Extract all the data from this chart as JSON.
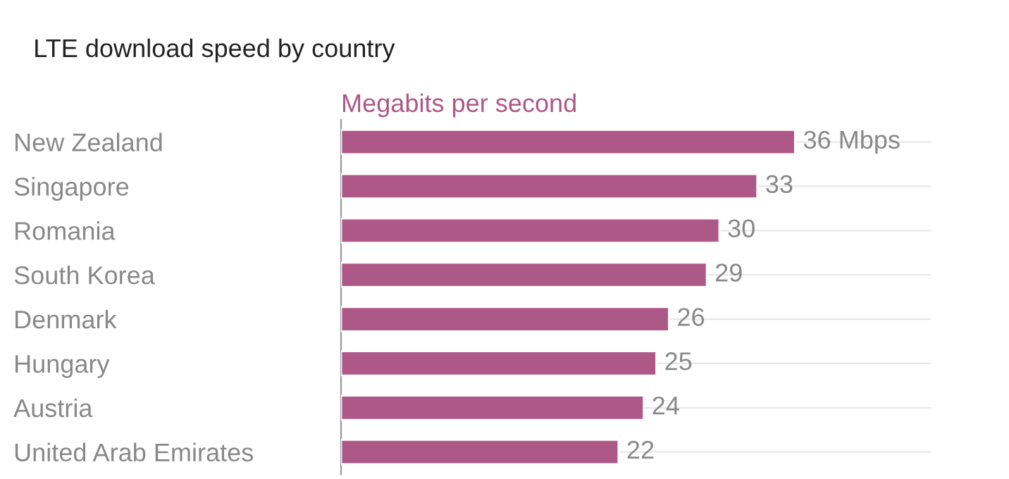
{
  "chart_data": {
    "type": "bar",
    "orientation": "horizontal",
    "title": "LTE download speed by country",
    "xlabel": "Megabits per second",
    "categories": [
      "New Zealand",
      "Singapore",
      "Romania",
      "South Korea",
      "Denmark",
      "Hungary",
      "Austria",
      "United Arab Emirates"
    ],
    "values": [
      36,
      33,
      30,
      29,
      26,
      25,
      24,
      22
    ],
    "value_labels": [
      "36 Mbps",
      "33",
      "30",
      "29",
      "26",
      "25",
      "24",
      "22"
    ],
    "color": "#ad5887",
    "grid": "y",
    "tick_labels": "y"
  }
}
